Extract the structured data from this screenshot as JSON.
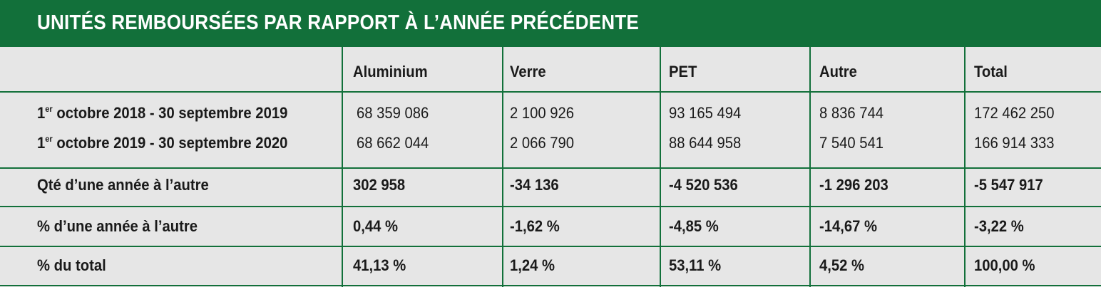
{
  "title": "UNITÉS REMBOURSÉES PAR RAPPORT À L’ANNÉE PRÉCÉDENTE",
  "accent_color": "#12703a",
  "columns": [
    "Aluminium",
    "Verre",
    "PET",
    "Autre",
    "Total"
  ],
  "periods": [
    {
      "ordinal": "1",
      "ordinal_suffix": "er",
      "label_rest": " octobre 2018 - 30 septembre  2019",
      "values": [
        "68 359 086",
        "2 100 926",
        "93 165 494",
        "8 836 744",
        "172 462 250"
      ]
    },
    {
      "ordinal": "1",
      "ordinal_suffix": "er",
      "label_rest": " octobre  2019 - 30 septembre  2020",
      "values": [
        "68 662 044",
        "2 066 790",
        "88 644 958",
        "7 540 541",
        "166 914 333"
      ]
    }
  ],
  "summary_rows": [
    {
      "label": "Qté d’une année à l’autre",
      "values": [
        "302 958",
        "-34 136",
        "-4 520 536",
        "-1 296 203",
        "-5 547 917"
      ]
    },
    {
      "label": "% d’une année à l’autre",
      "values": [
        "0,44 %",
        "-1,62 %",
        "-4,85 %",
        "-14,67 %",
        "-3,22 %"
      ]
    },
    {
      "label": "% du total",
      "values": [
        "41,13 %",
        "1,24 %",
        "53,11 %",
        "4,52 %",
        "100,00 %"
      ]
    }
  ]
}
